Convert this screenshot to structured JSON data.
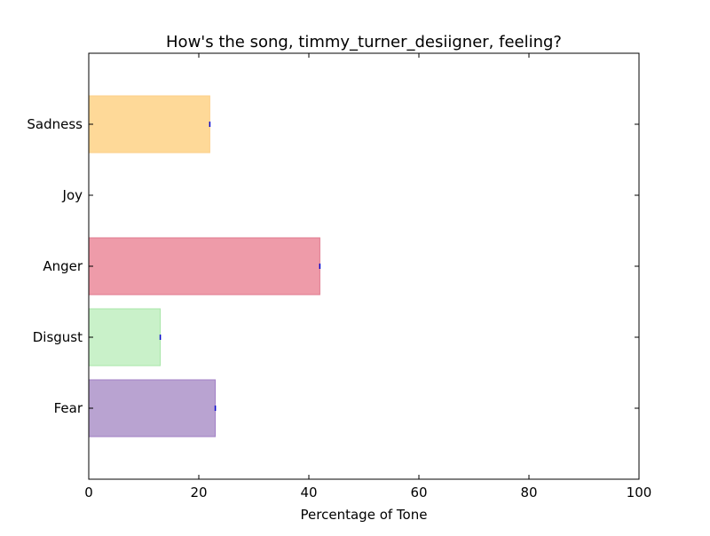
{
  "chart_data": {
    "type": "bar",
    "orientation": "horizontal",
    "title": "How's the song, timmy_turner_desiigner, feeling?",
    "xlabel": "Percentage of Tone",
    "ylabel": "",
    "xlim": [
      0,
      100
    ],
    "x_ticks": [
      0,
      20,
      40,
      60,
      80,
      100
    ],
    "grid": false,
    "legend": "none",
    "categories": [
      "Fear",
      "Disgust",
      "Anger",
      "Joy",
      "Sadness"
    ],
    "values": [
      23,
      13,
      42,
      0,
      22
    ],
    "colors": [
      "#b9a3d1",
      "#c9f1c9",
      "#ee9ba9",
      "#ffffff",
      "#fed998"
    ],
    "edge_colors": [
      "#a17fc5",
      "#a8e6a8",
      "#e07a8e",
      "#ffffff",
      "#fcd08a"
    ],
    "error_bar_color": "#0000cc"
  }
}
